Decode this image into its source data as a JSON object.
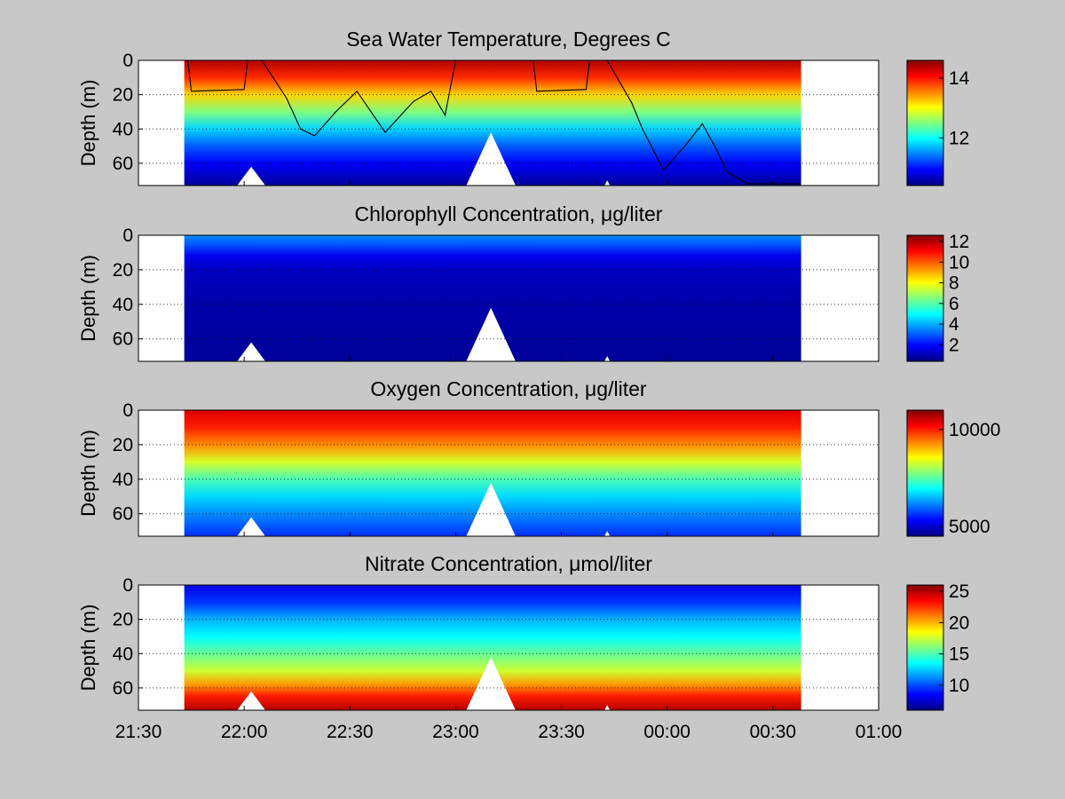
{
  "colormap": "jet",
  "x_ticks": [
    "21:30",
    "22:00",
    "22:30",
    "23:00",
    "23:30",
    "00:00",
    "00:30",
    "01:00"
  ],
  "chart_data": [
    {
      "type": "heatmap",
      "title": "Sea Water Temperature, Degrees C",
      "ylabel": "Depth (m)",
      "xlim": [
        "21:30",
        "01:00"
      ],
      "ylim": [
        0,
        73
      ],
      "y_reversed": true,
      "y_ticks": [
        "0",
        "20",
        "40",
        "60"
      ],
      "grid": "dotted",
      "data_time_range": [
        "21:43",
        "00:38"
      ],
      "clim": [
        10.4,
        14.6
      ],
      "colorbar_ticks": [
        "12",
        "14"
      ],
      "depth_profile": {
        "depth_m": [
          0,
          10,
          20,
          30,
          40,
          50,
          60,
          73
        ],
        "value": [
          14.4,
          13.9,
          13.2,
          12.5,
          11.8,
          11.3,
          10.9,
          10.5
        ]
      },
      "bottom_depth_m": 73,
      "has_overlay_track": true,
      "track": {
        "x": [
          "21:44",
          "21:45",
          "22:00",
          "22:01",
          "22:05",
          "22:12",
          "22:16",
          "22:20",
          "22:26",
          "22:32",
          "22:40",
          "22:48",
          "22:53",
          "22:57",
          "23:00",
          "23:22",
          "23:23",
          "23:37",
          "23:38",
          "23:43",
          "23:50",
          "23:53",
          "23:59",
          "00:05",
          "00:10",
          "00:14",
          "00:17",
          "00:23",
          "00:38"
        ],
        "y": [
          0,
          18,
          17,
          0,
          0,
          22,
          40,
          44,
          30,
          18,
          42,
          24,
          18,
          32,
          0,
          0,
          18,
          17,
          0,
          0,
          25,
          40,
          64,
          50,
          37,
          52,
          65,
          72,
          72
        ]
      }
    },
    {
      "type": "heatmap",
      "title": "Chlorophyll Concentration, μg/liter",
      "ylabel": "Depth (m)",
      "xlim": [
        "21:30",
        "01:00"
      ],
      "ylim": [
        0,
        73
      ],
      "y_reversed": true,
      "y_ticks": [
        "0",
        "20",
        "40",
        "60"
      ],
      "grid": "dotted",
      "data_time_range": [
        "21:43",
        "00:38"
      ],
      "clim": [
        0.4,
        12.6
      ],
      "colorbar_ticks": [
        "2",
        "4",
        "6",
        "8",
        "10",
        "12"
      ],
      "depth_profile": {
        "depth_m": [
          0,
          5,
          12,
          20,
          40,
          73
        ],
        "value": [
          3.6,
          3.0,
          1.7,
          1.2,
          0.9,
          0.7
        ]
      },
      "bottom_depth_m": 73,
      "has_overlay_track": false
    },
    {
      "type": "heatmap",
      "title": "Oxygen Concentration, μg/liter",
      "ylabel": "Depth (m)",
      "xlim": [
        "21:30",
        "01:00"
      ],
      "ylim": [
        0,
        73
      ],
      "y_reversed": true,
      "y_ticks": [
        "0",
        "20",
        "40",
        "60"
      ],
      "grid": "dotted",
      "data_time_range": [
        "21:43",
        "00:38"
      ],
      "clim": [
        4500,
        11000
      ],
      "colorbar_ticks": [
        "5000",
        "10000"
      ],
      "depth_profile": {
        "depth_m": [
          0,
          10,
          20,
          30,
          40,
          50,
          60,
          73
        ],
        "value": [
          10400,
          10000,
          9300,
          8300,
          7400,
          6700,
          6200,
          5600
        ]
      },
      "bottom_depth_m": 73,
      "has_overlay_track": false
    },
    {
      "type": "heatmap",
      "title": "Nitrate Concentration, μmol/liter",
      "ylabel": "Depth (m)",
      "xlim": [
        "21:30",
        "01:00"
      ],
      "ylim": [
        0,
        73
      ],
      "y_reversed": true,
      "y_ticks": [
        "0",
        "20",
        "40",
        "60"
      ],
      "grid": "dotted",
      "data_time_range": [
        "21:43",
        "00:38"
      ],
      "clim": [
        6,
        26
      ],
      "colorbar_ticks": [
        "10",
        "15",
        "20",
        "25"
      ],
      "depth_profile": {
        "depth_m": [
          0,
          10,
          20,
          30,
          40,
          50,
          58,
          65,
          73
        ],
        "value": [
          8.0,
          9.5,
          12.0,
          13.5,
          15.5,
          17.5,
          20.5,
          23.0,
          25.0
        ]
      },
      "bottom_depth_m": 73,
      "has_overlay_track": false
    }
  ]
}
